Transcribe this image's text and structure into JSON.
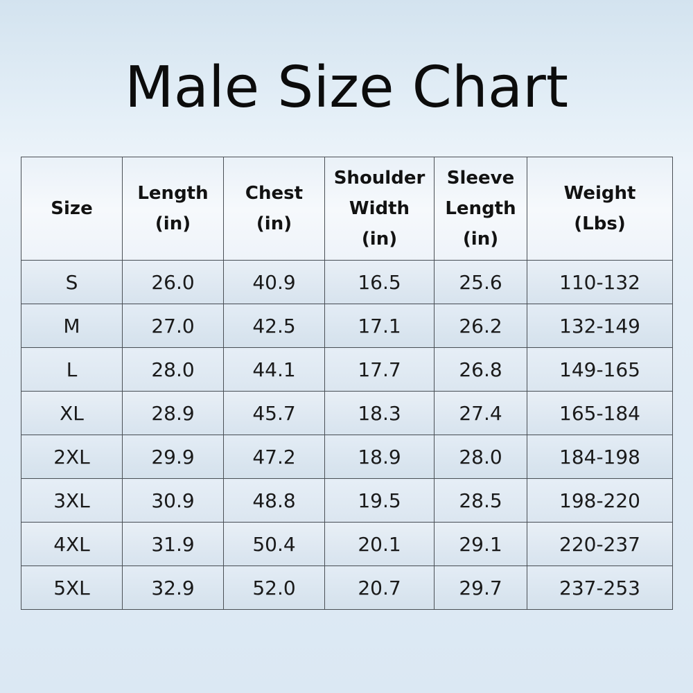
{
  "title": "Male Size Chart",
  "table": {
    "headers": [
      [
        "Size"
      ],
      [
        "Length",
        "(in)"
      ],
      [
        "Chest",
        "(in)"
      ],
      [
        "Shoulder",
        "Width",
        "(in)"
      ],
      [
        "Sleeve",
        "Length",
        "(in)"
      ],
      [
        "Weight",
        "(Lbs)"
      ]
    ],
    "rows": [
      [
        "S",
        "26.0",
        "40.9",
        "16.5",
        "25.6",
        "110-132"
      ],
      [
        "M",
        "27.0",
        "42.5",
        "17.1",
        "26.2",
        "132-149"
      ],
      [
        "L",
        "28.0",
        "44.1",
        "17.7",
        "26.8",
        "149-165"
      ],
      [
        "XL",
        "28.9",
        "45.7",
        "18.3",
        "27.4",
        "165-184"
      ],
      [
        "2XL",
        "29.9",
        "47.2",
        "18.9",
        "28.0",
        "184-198"
      ],
      [
        "3XL",
        "30.9",
        "48.8",
        "19.5",
        "28.5",
        "198-220"
      ],
      [
        "4XL",
        "31.9",
        "50.4",
        "20.1",
        "29.1",
        "220-237"
      ],
      [
        "5XL",
        "32.9",
        "52.0",
        "20.7",
        "29.7",
        "237-253"
      ]
    ]
  },
  "colors": {
    "text": "#121212",
    "border": "#4a4f55",
    "background": "#dbe8f3"
  }
}
